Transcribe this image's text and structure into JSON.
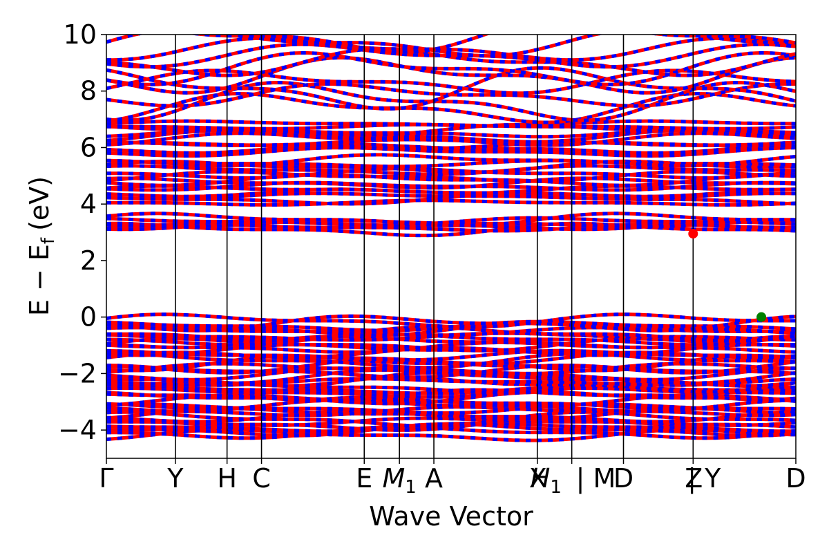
{
  "chart_data": {
    "type": "line",
    "title": "",
    "xlabel": "Wave Vector",
    "ylabel_main": "E − E",
    "ylabel_sub": "f",
    "ylabel_unit": "(eV)",
    "ylim": [
      -5,
      10
    ],
    "yticks": [
      10,
      8,
      6,
      4,
      2,
      0,
      -2,
      -4
    ],
    "ytick_labels": [
      "10",
      "8",
      "6",
      "4",
      "2",
      "0",
      "−2",
      "−4"
    ],
    "kpath": [
      {
        "label": "Γ",
        "x": 0.0
      },
      {
        "label": "Y",
        "x": 0.1
      },
      {
        "label": "H",
        "x": 0.175
      },
      {
        "label": "C",
        "x": 0.225
      },
      {
        "label": "E",
        "x": 0.374
      },
      {
        "label": "M1",
        "x": 0.425
      },
      {
        "label": "A",
        "x": 0.475
      },
      {
        "label": "X|H1",
        "x": 0.625
      },
      {
        "label": "|M",
        "x": 0.675
      },
      {
        "label": "D",
        "x": 0.75
      },
      {
        "label": "Z|Y",
        "x": 0.851
      },
      {
        "label": "D",
        "x": 1.0
      }
    ],
    "tick_label_text": {
      "gamma": "Γ",
      "y": "Y",
      "h": "H",
      "c": "C",
      "e": "E",
      "m1_main": "M",
      "m1_sub": "1",
      "a": "A",
      "x": "X",
      "h1_main": "H",
      "h1_sub": "1",
      "sep_m": "| M",
      "d": "D",
      "z": "Z",
      "sep_y": "| Y",
      "d2": "D"
    },
    "series_colors": {
      "band_a": "#ff0000",
      "band_b": "#0000ff"
    },
    "markers": [
      {
        "name": "CBM",
        "x": 0.851,
        "y": 2.95,
        "color": "#ff0000"
      },
      {
        "name": "VBM",
        "x": 0.95,
        "y": 0.0,
        "color": "#008000"
      }
    ],
    "valence_band_range": [
      -4.3,
      0.0
    ],
    "conduction_band_groups": [
      {
        "range": [
          3.05,
          3.5
        ]
      },
      {
        "range": [
          4.0,
          5.6
        ]
      },
      {
        "range": [
          5.8,
          6.9
        ]
      },
      {
        "range": [
          7.35,
          10.0
        ]
      }
    ],
    "grid": false,
    "legend": "none"
  }
}
